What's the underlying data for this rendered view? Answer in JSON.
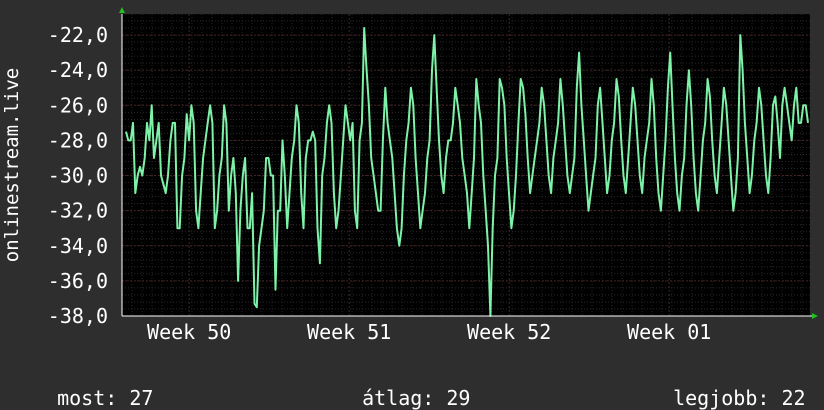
{
  "chart_data": {
    "type": "line",
    "ylabel": "onlinestream.live",
    "ylim": [
      -38,
      -20.8
    ],
    "y_ticks": [
      "-22,0",
      "-24,0",
      "-26,0",
      "-28,0",
      "-30,0",
      "-32,0",
      "-34,0",
      "-36,0",
      "-38,0"
    ],
    "y_tick_values": [
      -22,
      -24,
      -26,
      -28,
      -30,
      -32,
      -34,
      -36,
      -38
    ],
    "x_range": [
      0,
      4.3
    ],
    "x_ticks": [
      {
        "label": "Week 50",
        "at": 0.42
      },
      {
        "label": "Week 51",
        "at": 1.42
      },
      {
        "label": "Week 52",
        "at": 2.42
      },
      {
        "label": "Week 01",
        "at": 3.42
      }
    ],
    "grid": true,
    "colors": {
      "line": "#7df2a8",
      "background": "#000000",
      "page": "#2e2e2e",
      "grid_major": "#4a2222",
      "axis": "#ffffff",
      "arrow": "#20c020"
    },
    "series": [
      {
        "values": [
          -27.5,
          -28,
          -28,
          -27,
          -31,
          -30,
          -29.5,
          -30,
          -29,
          -27,
          -28,
          -26,
          -29,
          -28,
          -27,
          -30,
          -30.5,
          -31,
          -30,
          -28,
          -27,
          -27,
          -33,
          -33,
          -30,
          -29,
          -26.5,
          -28,
          -26,
          -27,
          -32,
          -33,
          -31,
          -29,
          -28,
          -27,
          -26,
          -27,
          -33,
          -32,
          -30,
          -29,
          -26,
          -27,
          -32,
          -30,
          -29,
          -31,
          -36,
          -32,
          -30,
          -29,
          -33,
          -33,
          -31,
          -37.3,
          -37.5,
          -34,
          -33,
          -32,
          -29,
          -29,
          -30,
          -30,
          -36.5,
          -32,
          -32,
          -28,
          -30,
          -33,
          -31,
          -29,
          -28,
          -26,
          -27,
          -31,
          -33,
          -29,
          -28,
          -28,
          -27.5,
          -28,
          -33,
          -35,
          -30,
          -29,
          -27,
          -26,
          -27,
          -31,
          -33,
          -32,
          -30,
          -28,
          -26,
          -27,
          -28,
          -27,
          -32,
          -33,
          -28,
          -27,
          -21.6,
          -24,
          -26,
          -29,
          -30,
          -31,
          -32,
          -32,
          -28,
          -25,
          -27,
          -28,
          -29,
          -31,
          -33,
          -34,
          -33,
          -30,
          -28,
          -27,
          -25,
          -26,
          -29,
          -31,
          -33,
          -32,
          -31,
          -29,
          -28,
          -24,
          -22,
          -25,
          -28,
          -30,
          -31,
          -29,
          -28,
          -28,
          -27,
          -25,
          -26,
          -27,
          -29,
          -30,
          -31,
          -33,
          -31,
          -29,
          -24.5,
          -26,
          -27,
          -30,
          -32,
          -34,
          -38,
          -33,
          -30,
          -29,
          -24.5,
          -25,
          -26,
          -29,
          -31,
          -33,
          -32,
          -30,
          -27,
          -24.5,
          -25,
          -26.5,
          -29,
          -31,
          -30,
          -29,
          -28,
          -27,
          -25,
          -26,
          -28,
          -30,
          -31,
          -29,
          -28,
          -27,
          -24.5,
          -26,
          -28,
          -30,
          -31,
          -30,
          -29,
          -25,
          -23,
          -26,
          -28,
          -30,
          -32,
          -31,
          -30,
          -29,
          -26,
          -25,
          -27,
          -29,
          -31,
          -30,
          -28,
          -27,
          -24.5,
          -25.5,
          -28,
          -30,
          -31,
          -29,
          -27,
          -25,
          -26,
          -28,
          -30,
          -31,
          -29,
          -28,
          -27,
          -24.5,
          -26,
          -29,
          -31,
          -32,
          -30,
          -28,
          -25,
          -23,
          -26,
          -29,
          -31,
          -32,
          -30,
          -29,
          -26,
          -24,
          -26,
          -29,
          -31,
          -32,
          -30,
          -28,
          -27,
          -24.5,
          -25.5,
          -28,
          -30,
          -31,
          -29,
          -27,
          -25,
          -26,
          -28,
          -30,
          -32,
          -31,
          -29,
          -22,
          -24,
          -27,
          -29,
          -31,
          -30,
          -28,
          -27,
          -25,
          -26,
          -28,
          -30,
          -31,
          -29,
          -26,
          -25.5,
          -27,
          -29,
          -26,
          -25,
          -26,
          -27,
          -28,
          -26,
          -25,
          -27,
          -27,
          -26,
          -26,
          -27
        ]
      }
    ],
    "stats": [
      {
        "label": "most:",
        "value": "27"
      },
      {
        "label": "átlag:",
        "value": "29"
      },
      {
        "label": "legjobb:",
        "value": "22"
      }
    ]
  }
}
